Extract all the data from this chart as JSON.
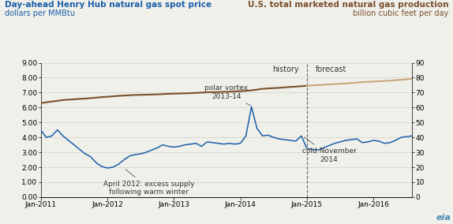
{
  "left_title_line1": "Day-ahead Henry Hub natural gas spot price",
  "left_title_line2": "dollars per MMBtu",
  "right_title_line1": "U.S. total marketed natural gas production",
  "right_title_line2": "billion cubic feet per day",
  "left_color": "#1a5ea8",
  "right_color_hist": "#7B4F2E",
  "right_color_fore": "#C8A87A",
  "ylim_left": [
    0,
    9.0
  ],
  "ylim_right": [
    0,
    90
  ],
  "yticks_left": [
    0.0,
    1.0,
    2.0,
    3.0,
    4.0,
    5.0,
    6.0,
    7.0,
    8.0,
    9.0
  ],
  "yticks_right": [
    0,
    10,
    20,
    30,
    40,
    50,
    60,
    70,
    80,
    90
  ],
  "forecast_start_idx": 48,
  "history_label": "history",
  "forecast_label": "forecast",
  "eia_logo_color": "#4a8cb5",
  "gas_price_data": [
    4.5,
    4.0,
    4.1,
    4.5,
    4.1,
    3.8,
    3.5,
    3.2,
    2.9,
    2.7,
    2.3,
    2.05,
    1.95,
    2.0,
    2.2,
    2.5,
    2.75,
    2.85,
    2.9,
    3.0,
    3.15,
    3.3,
    3.5,
    3.4,
    3.35,
    3.4,
    3.5,
    3.55,
    3.6,
    3.4,
    3.7,
    3.65,
    3.6,
    3.55,
    3.6,
    3.55,
    3.6,
    4.1,
    6.05,
    4.6,
    4.1,
    4.15,
    4.0,
    3.9,
    3.85,
    3.8,
    3.75,
    4.1,
    3.25,
    3.2,
    3.15,
    3.3,
    3.45,
    3.6,
    3.7,
    3.8,
    3.85,
    3.9,
    3.65,
    3.7,
    3.8,
    3.75,
    3.6,
    3.65,
    3.8,
    4.0,
    4.05,
    4.1
  ],
  "production_data": [
    63.0,
    63.5,
    64.0,
    64.5,
    65.0,
    65.3,
    65.5,
    65.8,
    66.0,
    66.3,
    66.6,
    67.0,
    67.2,
    67.5,
    67.8,
    68.0,
    68.2,
    68.4,
    68.5,
    68.6,
    68.7,
    68.8,
    69.0,
    69.2,
    69.3,
    69.4,
    69.5,
    69.6,
    69.8,
    70.0,
    70.2,
    70.3,
    70.4,
    70.5,
    70.6,
    70.8,
    70.9,
    71.2,
    71.5,
    72.0,
    72.5,
    72.8,
    73.0,
    73.2,
    73.5,
    73.8,
    74.0,
    74.3,
    74.5,
    74.8,
    75.0,
    75.2,
    75.5,
    75.7,
    75.9,
    76.1,
    76.4,
    76.7,
    77.0,
    77.2,
    77.4,
    77.6,
    77.8,
    78.0,
    78.3,
    78.6,
    78.9,
    79.2
  ],
  "xtick_positions": [
    0,
    12,
    24,
    36,
    48,
    60
  ],
  "xtick_labels": [
    "Jan-2011",
    "Jan-2012",
    "Jan-2013",
    "Jan-2014",
    "Jan-2015",
    "Jan-2016"
  ],
  "background_color": "#f0f0eb",
  "grid_color": "#d0d0c8"
}
